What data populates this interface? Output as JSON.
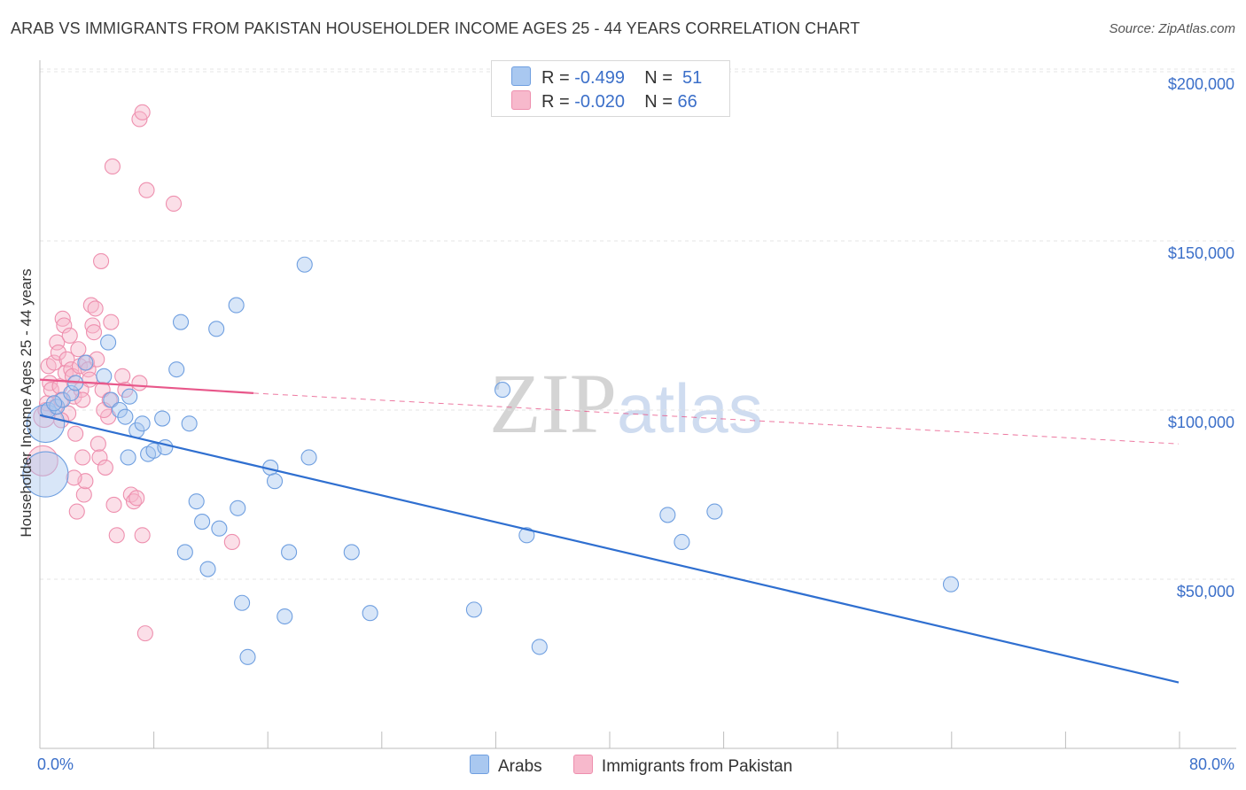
{
  "title": "ARAB VS IMMIGRANTS FROM PAKISTAN HOUSEHOLDER INCOME AGES 25 - 44 YEARS CORRELATION CHART",
  "source": "Source: ZipAtlas.com",
  "watermark": {
    "zip": "ZIP",
    "atlas": "atlas"
  },
  "legend": {
    "arabs": {
      "r_label": "R =",
      "r_value": "-0.499",
      "n_label": "N =",
      "n_value": "51"
    },
    "pakistan": {
      "r_label": "R =",
      "r_value": "-0.020",
      "n_label": "N =",
      "n_value": "66"
    }
  },
  "bottom_legend": {
    "arabs": "Arabs",
    "pakistan": "Immigrants from Pakistan"
  },
  "colors": {
    "arabs_fill": "#a9c8f0",
    "arabs_stroke": "#6f9fe0",
    "arabs_line": "#2f6fd0",
    "pak_fill": "#f7b9cc",
    "pak_stroke": "#ee8fae",
    "pak_line": "#e8578a",
    "grid": "#e4e4e4",
    "axis_label": "#3b6fc9"
  },
  "chart_data": {
    "type": "scatter",
    "title": "ARAB VS IMMIGRANTS FROM PAKISTAN HOUSEHOLDER INCOME AGES 25 - 44 YEARS CORRELATION CHART",
    "xlabel": "",
    "ylabel": "Householder Income Ages 25 - 44 years",
    "xlim": [
      0,
      80
    ],
    "ylim": [
      0,
      205000
    ],
    "x_tick_labels": [
      "0.0%",
      "80.0%"
    ],
    "y_ticks": [
      50000,
      100000,
      150000,
      200000
    ],
    "y_tick_labels": [
      "$50,000",
      "$100,000",
      "$150,000",
      "$200,000"
    ],
    "series": [
      {
        "name": "Arabs",
        "trend": {
          "x": [
            0,
            80
          ],
          "y": [
            98500,
            19500
          ],
          "style": "solid"
        },
        "points": [
          [
            0.4,
            81000,
            3
          ],
          [
            0.4,
            96000,
            2.5
          ],
          [
            0.6,
            100000,
            1
          ],
          [
            1.2,
            101000,
            1
          ],
          [
            1.6,
            103000,
            1
          ],
          [
            2.2,
            105000,
            1
          ],
          [
            3.2,
            114000,
            1
          ],
          [
            4.5,
            110000,
            1
          ],
          [
            4.8,
            120000,
            1
          ],
          [
            5.0,
            103000,
            1
          ],
          [
            5.6,
            100000,
            1
          ],
          [
            6.0,
            98000,
            1
          ],
          [
            6.2,
            86000,
            1
          ],
          [
            6.3,
            104000,
            1
          ],
          [
            6.8,
            94000,
            1
          ],
          [
            7.2,
            96000,
            1
          ],
          [
            7.6,
            87000,
            1
          ],
          [
            8.0,
            88000,
            1
          ],
          [
            8.6,
            97500,
            1
          ],
          [
            8.8,
            89000,
            1
          ],
          [
            9.6,
            112000,
            1
          ],
          [
            9.9,
            126000,
            1
          ],
          [
            10.2,
            58000,
            1
          ],
          [
            10.5,
            96000,
            1
          ],
          [
            11.0,
            73000,
            1
          ],
          [
            11.4,
            67000,
            1
          ],
          [
            11.8,
            53000,
            1
          ],
          [
            12.4,
            124000,
            1
          ],
          [
            12.6,
            65000,
            1
          ],
          [
            13.9,
            71000,
            1
          ],
          [
            13.8,
            131000,
            1
          ],
          [
            14.2,
            43000,
            1
          ],
          [
            14.6,
            27000,
            1
          ],
          [
            16.2,
            83000,
            1
          ],
          [
            16.5,
            79000,
            1
          ],
          [
            17.2,
            39000,
            1
          ],
          [
            17.5,
            58000,
            1
          ],
          [
            18.6,
            143000,
            1
          ],
          [
            18.9,
            86000,
            1
          ],
          [
            21.9,
            58000,
            1
          ],
          [
            23.2,
            40000,
            1
          ],
          [
            30.5,
            41000,
            1
          ],
          [
            32.5,
            106000,
            1
          ],
          [
            34.2,
            63000,
            1
          ],
          [
            35.1,
            30000,
            1
          ],
          [
            44.1,
            69000,
            1
          ],
          [
            45.1,
            61000,
            1
          ],
          [
            47.4,
            70000,
            1
          ],
          [
            64.0,
            48500,
            1
          ],
          [
            1.0,
            102000,
            1
          ],
          [
            2.5,
            108000,
            1
          ]
        ]
      },
      {
        "name": "Immigrants from Pakistan",
        "trend": {
          "x": [
            0,
            15
          ],
          "y": [
            109000,
            105000
          ],
          "style": "solid",
          "extension": {
            "x": [
              15,
              80
            ],
            "y": [
              105000,
              90000
            ],
            "style": "dashed"
          }
        },
        "points": [
          [
            0.2,
            85000,
            2
          ],
          [
            0.3,
            98000,
            1.4
          ],
          [
            0.4,
            100000,
            1
          ],
          [
            0.5,
            102000,
            1
          ],
          [
            0.6,
            113000,
            1
          ],
          [
            0.7,
            108000,
            1
          ],
          [
            0.8,
            106000,
            1
          ],
          [
            1.0,
            114000,
            1
          ],
          [
            1.1,
            101000,
            1
          ],
          [
            1.2,
            120000,
            1
          ],
          [
            1.3,
            117000,
            1
          ],
          [
            1.4,
            107000,
            1
          ],
          [
            1.5,
            103000,
            1
          ],
          [
            1.6,
            127000,
            1
          ],
          [
            1.7,
            125000,
            1
          ],
          [
            1.8,
            111000,
            1
          ],
          [
            1.9,
            115000,
            1
          ],
          [
            2.0,
            99000,
            1
          ],
          [
            2.1,
            122000,
            1
          ],
          [
            2.2,
            112000,
            1
          ],
          [
            2.3,
            110000,
            1
          ],
          [
            2.4,
            104000,
            1
          ],
          [
            2.5,
            93000,
            1
          ],
          [
            2.6,
            70000,
            1
          ],
          [
            2.7,
            118000,
            1
          ],
          [
            2.8,
            113000,
            1
          ],
          [
            2.9,
            106000,
            1
          ],
          [
            3.0,
            103000,
            1
          ],
          [
            3.1,
            75000,
            1
          ],
          [
            3.2,
            79000,
            1
          ],
          [
            3.3,
            114000,
            1
          ],
          [
            3.4,
            112000,
            1
          ],
          [
            3.5,
            109000,
            1
          ],
          [
            3.6,
            131000,
            1
          ],
          [
            3.7,
            125000,
            1
          ],
          [
            3.8,
            123000,
            1
          ],
          [
            3.9,
            130000,
            1
          ],
          [
            4.0,
            115000,
            1
          ],
          [
            4.1,
            90000,
            1
          ],
          [
            4.2,
            86000,
            1
          ],
          [
            4.3,
            144000,
            1
          ],
          [
            4.4,
            106000,
            1
          ],
          [
            4.6,
            83000,
            1
          ],
          [
            4.8,
            98000,
            1
          ],
          [
            4.9,
            103000,
            1
          ],
          [
            5.0,
            126000,
            1
          ],
          [
            5.2,
            72000,
            1
          ],
          [
            5.4,
            63000,
            1
          ],
          [
            5.8,
            110000,
            1
          ],
          [
            6.0,
            106000,
            1
          ],
          [
            6.4,
            75000,
            1
          ],
          [
            6.6,
            73000,
            1
          ],
          [
            6.8,
            74000,
            1
          ],
          [
            7.0,
            108000,
            1
          ],
          [
            7.2,
            63000,
            1
          ],
          [
            7.4,
            34000,
            1
          ],
          [
            7.0,
            186000,
            1
          ],
          [
            7.2,
            188000,
            1
          ],
          [
            5.1,
            172000,
            1
          ],
          [
            7.5,
            165000,
            1
          ],
          [
            9.4,
            161000,
            1
          ],
          [
            13.5,
            61000,
            1
          ],
          [
            3.0,
            86000,
            1
          ],
          [
            1.5,
            97000,
            1
          ],
          [
            2.4,
            80000,
            1
          ],
          [
            4.5,
            100000,
            1
          ]
        ]
      }
    ]
  }
}
